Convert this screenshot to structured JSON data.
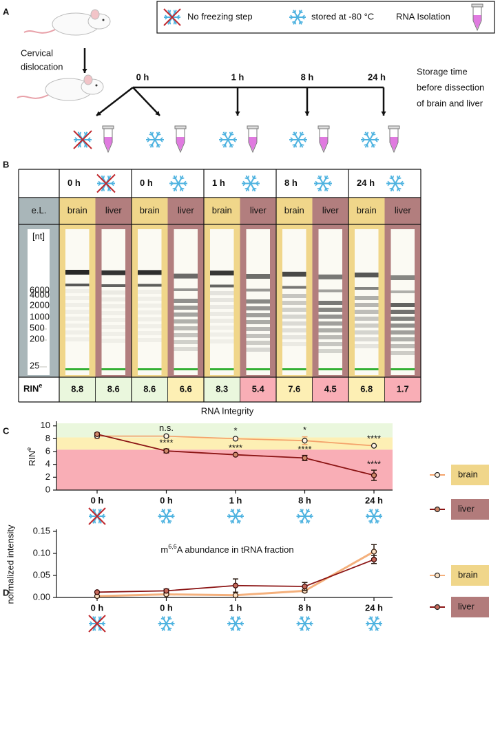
{
  "panel_labels": [
    "A",
    "B",
    "C",
    "D"
  ],
  "legend": {
    "items": [
      "No freezing step",
      "stored at -80 °C",
      "RNA Isolation"
    ]
  },
  "panel_a": {
    "procedure": [
      "Cervical",
      "dislocation"
    ],
    "times": [
      "0 h",
      "1 h",
      "8 h",
      "24 h"
    ],
    "storage_note": [
      "Storage time",
      "before dissection",
      "of brain and liver"
    ]
  },
  "panel_b": {
    "columns": [
      {
        "time": "0 h",
        "icon": "no-freeze"
      },
      {
        "time": "0 h",
        "icon": "frozen"
      },
      {
        "time": "1 h",
        "icon": "frozen"
      },
      {
        "time": "8 h",
        "icon": "frozen"
      },
      {
        "time": "24 h",
        "icon": "frozen"
      }
    ],
    "row_label": "e.L.",
    "tissues": [
      "brain",
      "liver",
      "brain",
      "liver",
      "brain",
      "liver",
      "brain",
      "liver",
      "brain",
      "liver"
    ],
    "tissue_colors": {
      "brain": "#f0d68a",
      "liver": "#b27e7e"
    },
    "ladder_unit": "[nt]",
    "ladder": [
      6000,
      4000,
      2000,
      1000,
      500,
      200,
      25
    ],
    "rin_label": {
      "base": "RIN",
      "sup": "e"
    },
    "rin": [
      8.8,
      8.6,
      8.6,
      6.6,
      8.3,
      5.4,
      7.6,
      4.5,
      6.8,
      1.7
    ]
  },
  "chart_data": [
    {
      "type": "line",
      "title": "RNA Integrity",
      "y_label": {
        "base": "RIN",
        "sup": "e"
      },
      "categories": [
        "0 h",
        "0 h",
        "1 h",
        "8 h",
        "24 h"
      ],
      "x_icons": [
        "no-freeze",
        "frozen",
        "frozen",
        "frozen",
        "frozen"
      ],
      "ylim": [
        0,
        10.4
      ],
      "yticks": [
        0,
        2,
        4,
        6,
        8,
        10
      ],
      "zones": [
        {
          "from": 0,
          "to": 6.3,
          "color": "#f9aeb6"
        },
        {
          "from": 6.3,
          "to": 8.2,
          "color": "#fdefb4"
        },
        {
          "from": 8.2,
          "to": 10.4,
          "color": "#eaf7dd"
        }
      ],
      "legend_position": "right",
      "series": [
        {
          "name": "brain",
          "color": "#f4a36b",
          "marker_fill": "#fff3e2",
          "legend_color": "#f0d68a",
          "values": [
            8.4,
            8.4,
            8.0,
            7.7,
            6.9
          ],
          "errors": [
            0.4,
            0.2,
            0.2,
            0.6,
            0.05
          ],
          "annotations": [
            null,
            "n.s.",
            "*",
            "*",
            "****"
          ]
        },
        {
          "name": "liver",
          "color": "#8b1414",
          "marker_fill": "#d08a6a",
          "legend_color": "#b27b7b",
          "values": [
            8.7,
            6.1,
            5.5,
            5.0,
            2.3
          ],
          "errors": [
            0.2,
            0.3,
            0.1,
            0.4,
            0.8
          ],
          "annotations": [
            null,
            "****",
            "****",
            "****",
            "****"
          ]
        }
      ]
    },
    {
      "type": "line",
      "title": {
        "pre": "m",
        "sup": "6,6",
        "post": "A abundance in tRNA fraction"
      },
      "y_label": "normalized intensity",
      "categories": [
        "0 h",
        "0 h",
        "1 h",
        "8 h",
        "24 h"
      ],
      "x_icons": [
        "no-freeze",
        "frozen",
        "frozen",
        "frozen",
        "frozen"
      ],
      "ylim": [
        0,
        0.15
      ],
      "yticks": [
        {
          "value": 0,
          "label": "0.00"
        },
        {
          "value": 0.05,
          "label": "0.05"
        },
        {
          "value": 0.1,
          "label": "0.10"
        },
        {
          "value": 0.15,
          "label": "0.15"
        }
      ],
      "legend_position": "right",
      "series": [
        {
          "name": "brain",
          "color": "#f4b07c",
          "marker_fill": "#fde3c5",
          "legend_color": "#f0d68a",
          "values": [
            0.003,
            0.007,
            0.005,
            0.015,
            0.104
          ],
          "errors": [
            0.001,
            0.002,
            0.001,
            0.003,
            0.016
          ]
        },
        {
          "name": "liver",
          "color": "#8b1414",
          "marker_fill": "#c66a5a",
          "legend_color": "#b27b7b",
          "values": [
            0.012,
            0.015,
            0.027,
            0.025,
            0.086
          ],
          "errors": [
            0.001,
            0.004,
            0.015,
            0.009,
            0.009
          ]
        }
      ]
    }
  ]
}
